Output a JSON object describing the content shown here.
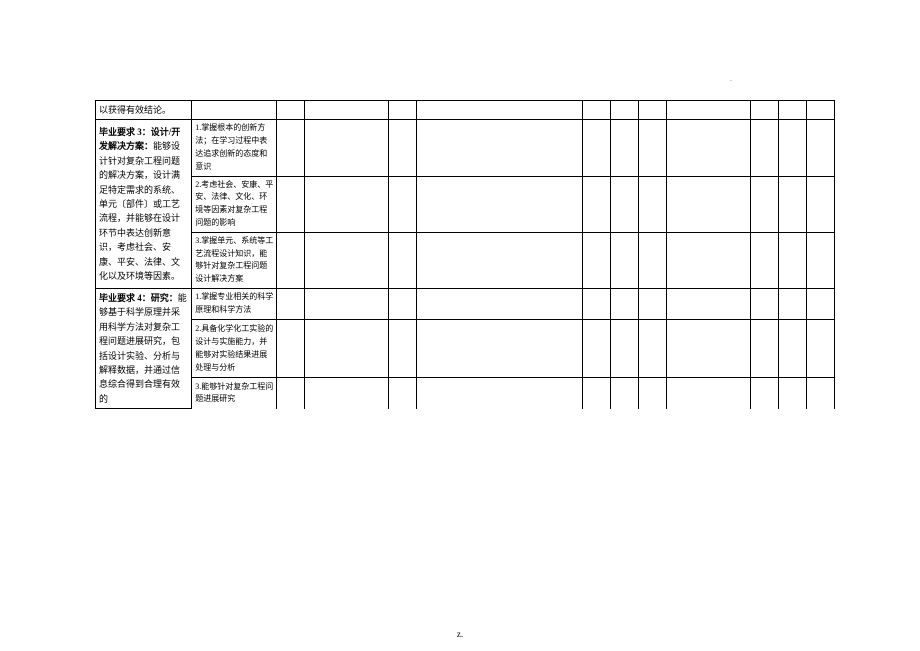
{
  "table": {
    "rows": [
      {
        "col1": "以获得有效结论。",
        "col2": ""
      },
      {
        "col1_title": "毕业要求 3：设计/开发解决方案：",
        "col1_body": "能够设计针对复杂工程问题的解决方案，设计满足特定需求的系统、单元〔部件〕或工艺流程，并能够在设计环节中表达创新意识，考虑社会、安康、平安、法律、文化以及环境等因素。",
        "col2_items": [
          "1.掌握根本的创新方法；在学习过程中表达追求创新的态度和意识",
          "2.考虑社会、安康、平安、法律、文化、环境等因素对复杂工程问题的影响",
          "3.掌握单元、系统等工艺流程设计知识，能够针对复杂工程问题设计解决方案"
        ]
      },
      {
        "col1_title": "毕业要求 4：研究：",
        "col1_body": "能够基于科学原理并采用科学方法对复杂工程问题进展研究，包括设计实验、分析与解释数据，并通过信息综合得到合理有效的",
        "col2_items": [
          "1.掌握专业相关的科学原理和科学方法",
          "2.具备化学化工实验的设计与实施能力，并能够对实验结果进展处理与分析",
          "3.能够针对复杂工程问题进展研究"
        ]
      }
    ]
  },
  "footer": "z.",
  "watermark": "-"
}
